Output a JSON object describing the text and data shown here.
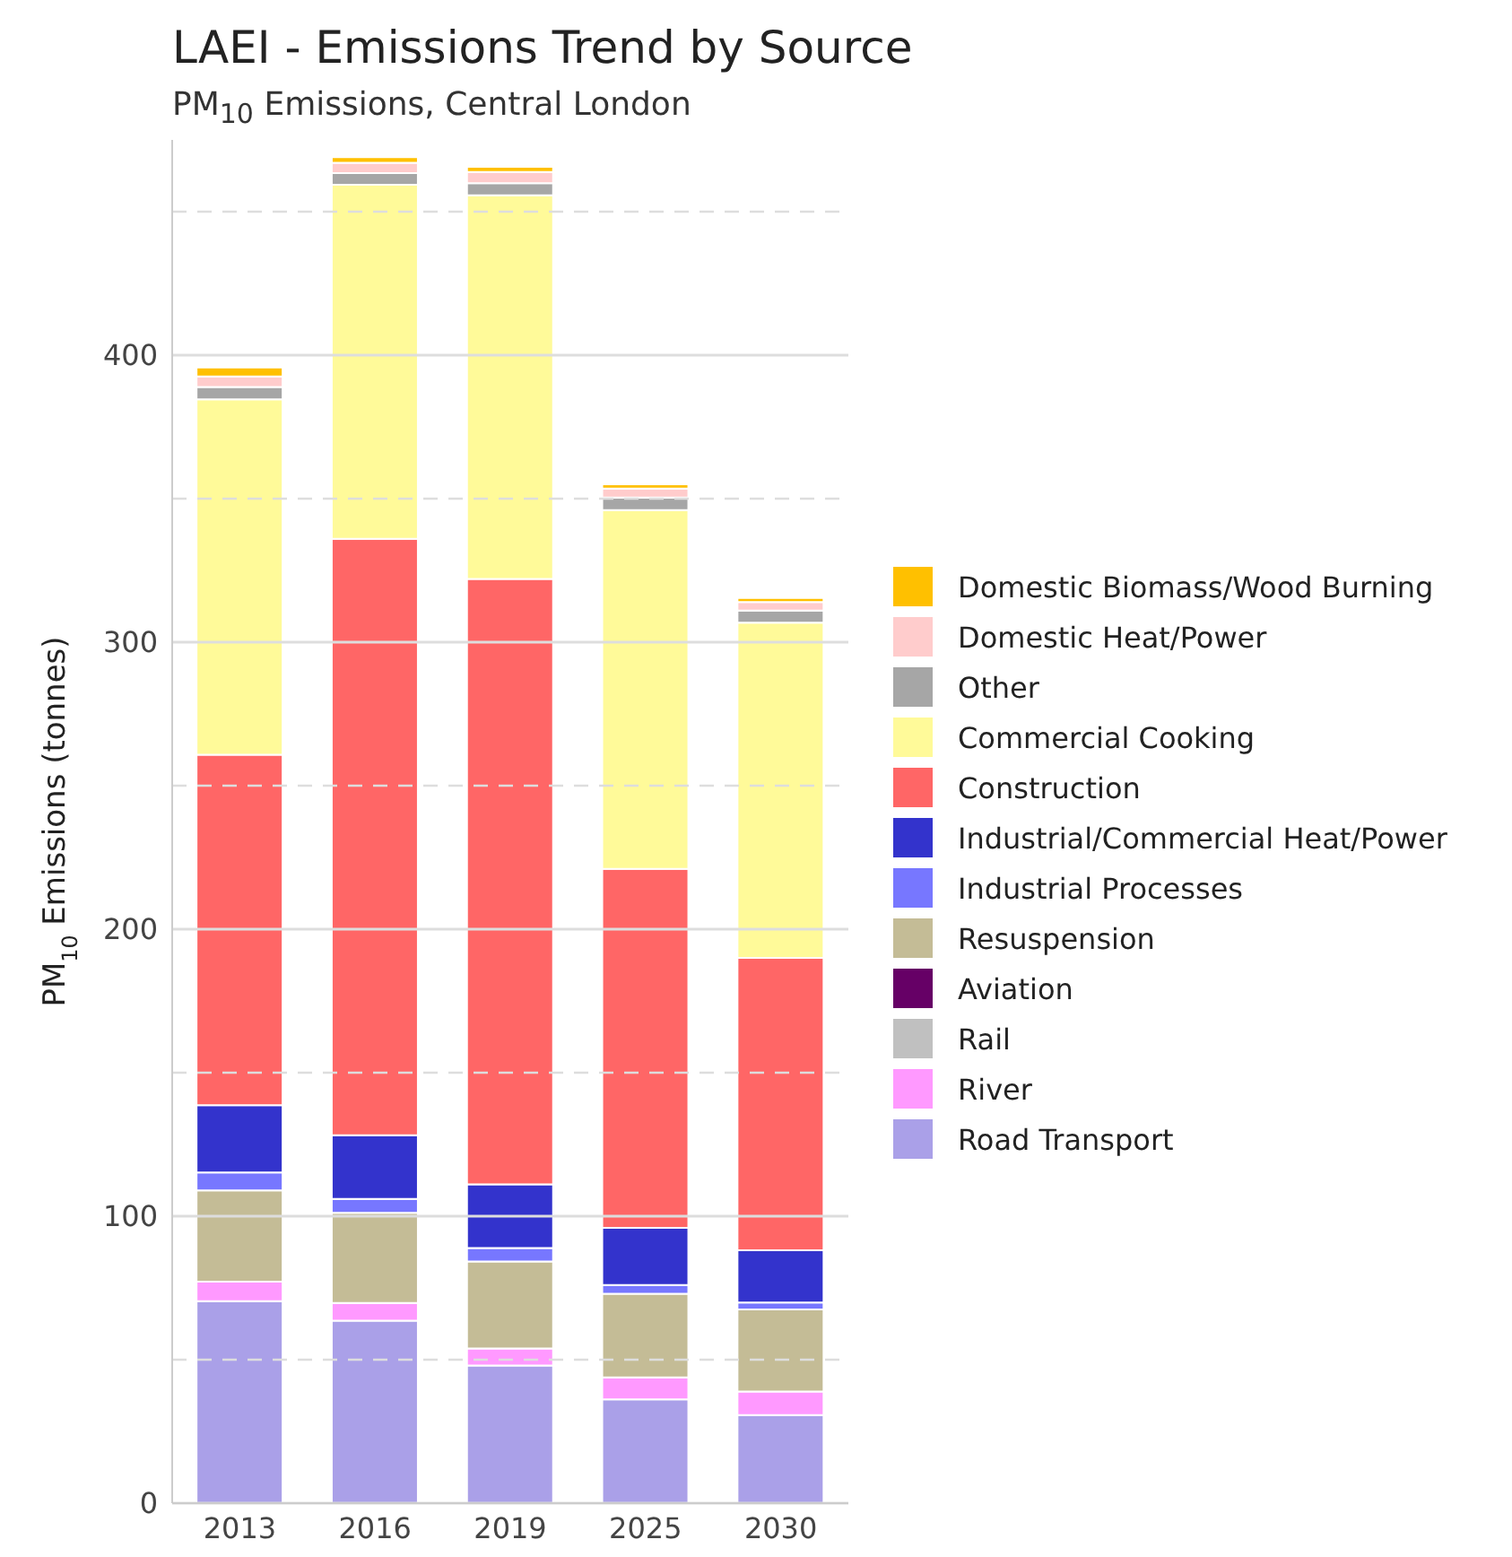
{
  "chart_data": {
    "type": "bar",
    "stacked": true,
    "title": "LAEI - Emissions Trend by Source",
    "subtitle": "PM$_{10}$ Emissions, Central London",
    "ylabel": "PM$_{10}$ Emissions (tonnes)",
    "categories": [
      "2013",
      "2016",
      "2019",
      "2025",
      "2030"
    ],
    "series": [
      {
        "name": "Road Transport",
        "color": "#aaa0e8",
        "values": [
          70.4,
          63.6,
          48,
          36.2,
          30.7
        ]
      },
      {
        "name": "River",
        "color": "#ff99ff",
        "values": [
          6.8,
          6.2,
          5.9,
          7.6,
          8.2
        ]
      },
      {
        "name": "Rail",
        "color": "#c0c0c0",
        "values": [
          0,
          0,
          0,
          0,
          0
        ]
      },
      {
        "name": "Aviation",
        "color": "#660066",
        "values": [
          0,
          0,
          0,
          0,
          0
        ]
      },
      {
        "name": "Resuspension",
        "color": "#c4bc96",
        "values": [
          31.8,
          31.4,
          30.3,
          29.2,
          28.6
        ]
      },
      {
        "name": "Industrial Processes",
        "color": "#7777ff",
        "values": [
          6.2,
          4.8,
          4.7,
          3,
          2.4
        ]
      },
      {
        "name": "Industrial/Commercial Heat/Power",
        "color": "#3333cc",
        "values": [
          23.5,
          22.2,
          22.2,
          19.9,
          18.2
        ]
      },
      {
        "name": "Construction",
        "color": "#ff6666",
        "values": [
          122.1,
          207.8,
          210.9,
          125.1,
          101.9
        ]
      },
      {
        "name": "Commercial Cooking",
        "color": "#fffa99",
        "values": [
          123.8,
          123.4,
          133.7,
          125,
          116.8
        ]
      },
      {
        "name": "Other",
        "color": "#a6a6a6",
        "values": [
          4.3,
          4,
          4.2,
          4.4,
          4.2
        ]
      },
      {
        "name": "Domestic Heat/Power",
        "color": "#ffcccc",
        "values": [
          3.7,
          3.6,
          3.9,
          3.1,
          3
        ]
      },
      {
        "name": "Domestic Biomass/Wood Burning",
        "color": "#ffc000",
        "values": [
          3.1,
          2,
          1.8,
          1.5,
          1.4
        ]
      }
    ],
    "ylim": [
      0,
      475
    ],
    "yticks": [
      0,
      {
        "value": 50,
        "label": null
      },
      100,
      {
        "value": 150,
        "label": null
      },
      200,
      {
        "value": 250,
        "label": null
      },
      300,
      {
        "value": 350,
        "label": null
      },
      400,
      {
        "value": 450,
        "label": null
      }
    ],
    "grid": "y",
    "legend": "right"
  }
}
